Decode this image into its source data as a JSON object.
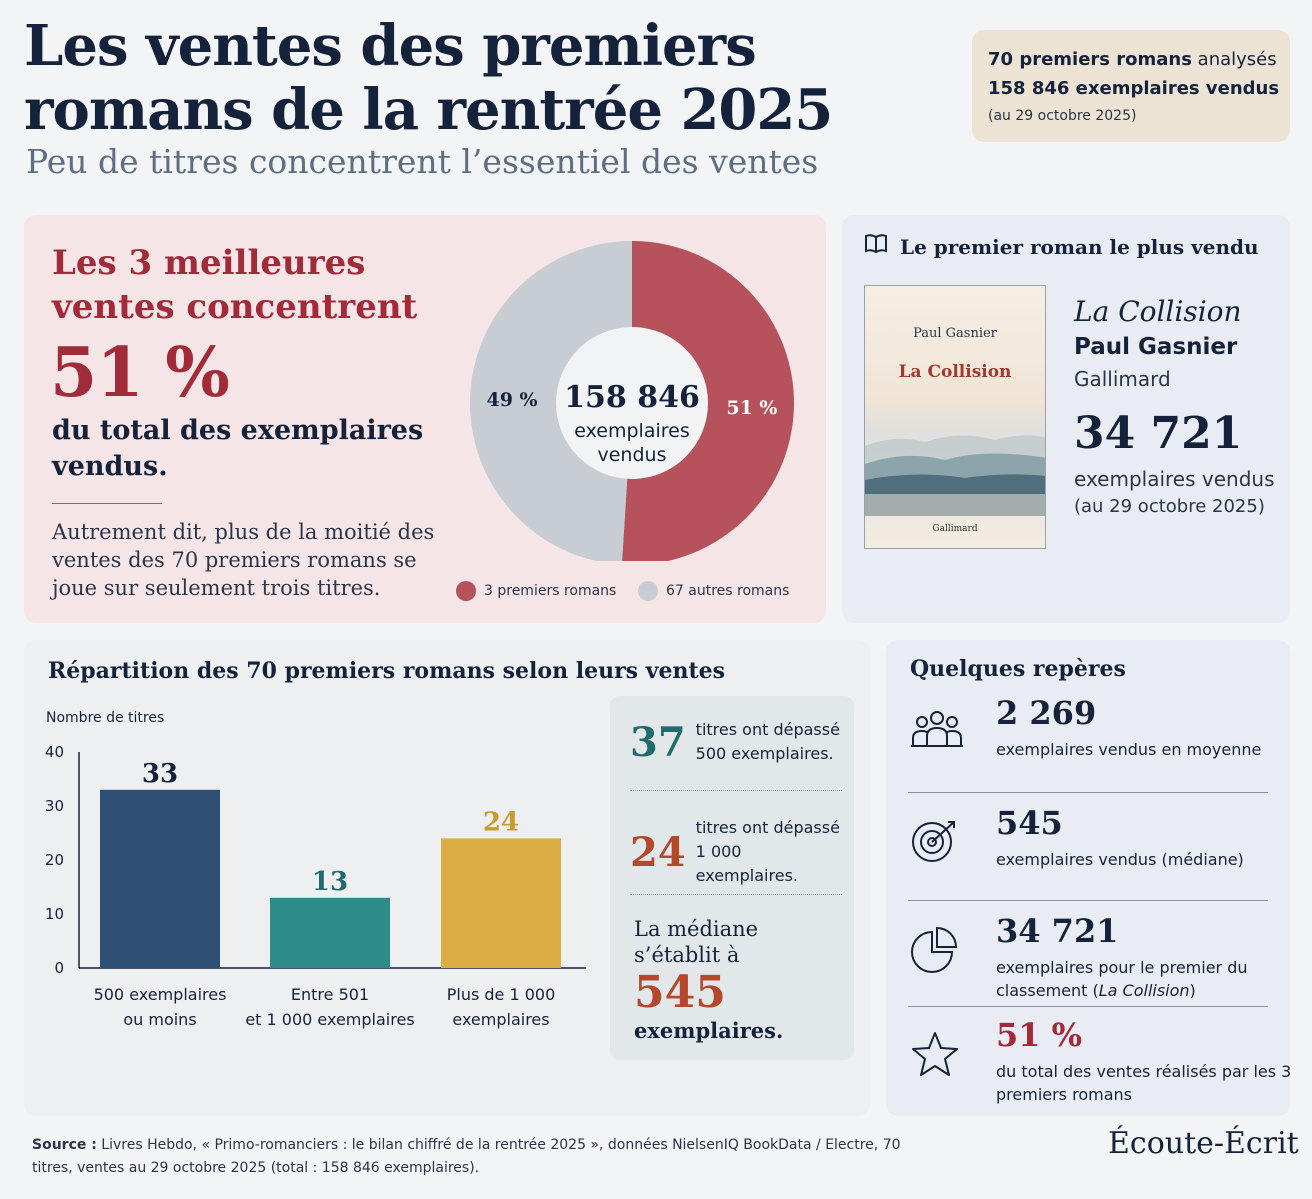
{
  "header": {
    "title": "Les ventes des premiers romans de la rentrée 2025",
    "subtitle": "Peu de titres concentrent l’essentiel des ventes",
    "summary": {
      "line1_bold": "70 premiers romans",
      "line1_rest": " analysés",
      "line2": "158 846 exemplaires vendus",
      "line3": "(au 29 octobre 2025)"
    }
  },
  "concentration": {
    "heading": "Les 3 meilleures ventes concentrent",
    "big_value": "51 %",
    "tail": "du total des exemplaires vendus.",
    "note": "Autrement dit, plus de la moitié des ventes des 70 premiers romans se joue sur seulement trois titres.",
    "donut_center_value": "158 846",
    "donut_center_label_1": "exemplaires",
    "donut_center_label_2": "vendus"
  },
  "bestseller": {
    "heading": "Le premier roman le plus vendu",
    "icon": "book-icon",
    "title": "La Collision",
    "author": "Paul Gasnier",
    "publisher": "Gallimard",
    "copies": "34 721",
    "copies_label": "exemplaires vendus",
    "date": "(au 29 octobre 2025)",
    "cover_author": "Paul Gasnier",
    "cover_title": "La Collision",
    "cover_publisher": "Gallimard"
  },
  "distribution": {
    "title": "Répartition des 70 premiers romans selon leurs ventes",
    "facts": [
      {
        "value": "37",
        "text": "titres ont dépassé 500 exemplaires.",
        "color": "#1f6b6e"
      },
      {
        "value": "24",
        "text": "titres ont dépassé 1 000 exemplaires.",
        "color": "#b5472a"
      }
    ],
    "median_text_1": "La médiane s’établit à",
    "median_value": "545",
    "median_text_2": "exemplaires."
  },
  "keys": {
    "title": "Quelques repères",
    "items": [
      {
        "icon": "people-icon",
        "value": "2 269",
        "label": "exemplaires vendus en moyenne"
      },
      {
        "icon": "target-icon",
        "value": "545",
        "label": "exemplaires vendus (médiane)"
      },
      {
        "icon": "pie-icon",
        "value": "34 721",
        "label_html_a": "exemplaires pour le premier du classement (",
        "label_italic": "La Collision",
        "label_html_b": ")"
      },
      {
        "icon": "star-icon",
        "value": "51 %",
        "label": "du total des ventes réalisés par les 3 premiers romans",
        "value_color": "#a22b3a"
      }
    ]
  },
  "footer": {
    "source_label": "Source :",
    "source_text": " Livres Hebdo, « Primo-romanciers : le bilan chiffré de la rentrée 2025 », données NielsenIQ BookData / Electre, 70 titres, ventes au 29 octobre 2025 (total : 158 846 exemplaires).",
    "brand": "Écoute-Écrit"
  },
  "chart_data": [
    {
      "type": "pie",
      "variant": "donut",
      "labels": [
        "3 premiers romans",
        "67 autres romans"
      ],
      "values": [
        51,
        49
      ],
      "value_labels": [
        "51 %",
        "49 %"
      ],
      "colors": [
        "#b5525c",
        "#c8cdd4"
      ]
    },
    {
      "type": "bar",
      "ylabel": "Nombre de titres",
      "categories": [
        "500 exemplaires ou moins",
        "Entre 501 et 1 000 exemplaires",
        "Plus de 1 000 exemplaires"
      ],
      "category_lines": [
        [
          "500 exemplaires",
          "ou moins"
        ],
        [
          "Entre 501",
          "et 1 000 exemplaires"
        ],
        [
          "Plus de 1 000",
          "exemplaires"
        ]
      ],
      "values": [
        33,
        13,
        24
      ],
      "colors": [
        "#2f4e74",
        "#2f8a8a",
        "#dcac45"
      ],
      "label_colors": [
        "#15223b",
        "#1f6b6e",
        "#c99a2e"
      ],
      "ylim": [
        0,
        40
      ],
      "yticks": [
        0,
        10,
        20,
        30,
        40
      ],
      "grid": false
    }
  ]
}
